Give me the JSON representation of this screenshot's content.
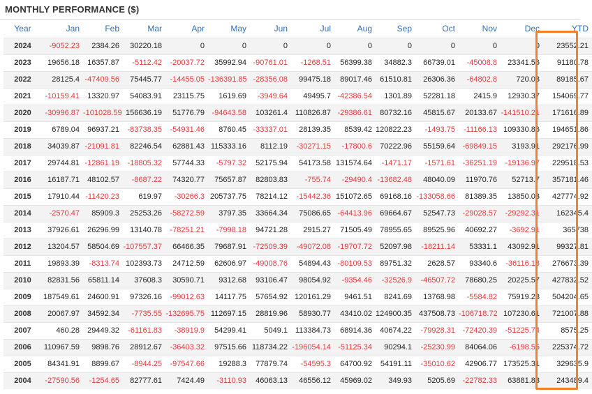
{
  "title": "MONTHLY PERFORMANCE ($)",
  "colors": {
    "header_text": "#2f6fb3",
    "negative": "#e23b3b",
    "highlight": "#f0822d"
  },
  "headers": [
    "Year",
    "Jan",
    "Feb",
    "Mar",
    "Apr",
    "May",
    "Jun",
    "Jul",
    "Aug",
    "Sep",
    "Oct",
    "Nov",
    "Dec",
    "YTD"
  ],
  "rows": [
    [
      "2024",
      "-9052.23",
      "2384.26",
      "30220.18",
      "0",
      "0",
      "0",
      "0",
      "0",
      "0",
      "0",
      "0",
      "0",
      "23552.21"
    ],
    [
      "2023",
      "19656.18",
      "16357.87",
      "-5112.42",
      "-20037.72",
      "35992.94",
      "-90761.01",
      "-1268.51",
      "56399.38",
      "34882.3",
      "66739.01",
      "-45008.8",
      "23341.56",
      "91180.78"
    ],
    [
      "2022",
      "28125.4",
      "-47409.56",
      "75445.77",
      "-14455.05",
      "-136391.85",
      "-28356.08",
      "99475.18",
      "89017.46",
      "61510.81",
      "26306.36",
      "-64802.8",
      "720.03",
      "89185.67"
    ],
    [
      "2021",
      "-10159.41",
      "13320.97",
      "54083.91",
      "23115.75",
      "1619.69",
      "-3949.64",
      "49495.7",
      "-42386.54",
      "1301.89",
      "52281.18",
      "2415.9",
      "12930.37",
      "154069.77"
    ],
    [
      "2020",
      "-30996.87",
      "-101028.59",
      "156636.19",
      "51776.79",
      "-94643.58",
      "103261.4",
      "110826.87",
      "-29386.61",
      "80732.16",
      "45815.67",
      "20133.67",
      "-141510.21",
      "171616.89"
    ],
    [
      "2019",
      "6789.04",
      "96937.21",
      "-83738.35",
      "-54931.46",
      "8760.45",
      "-33337.01",
      "28139.35",
      "8539.42",
      "120822.23",
      "-1493.75",
      "-11166.13",
      "109330.86",
      "194651.86"
    ],
    [
      "2018",
      "34039.87",
      "-21091.81",
      "82246.54",
      "62881.43",
      "115333.16",
      "8112.19",
      "-30271.15",
      "-17800.6",
      "70222.96",
      "55159.64",
      "-69849.15",
      "3193.91",
      "292176.99"
    ],
    [
      "2017",
      "29744.81",
      "-12861.19",
      "-18805.32",
      "57744.33",
      "-5797.32",
      "52175.94",
      "54173.58",
      "131574.64",
      "-1471.17",
      "-1571.61",
      "-36251.19",
      "-19136.97",
      "229518.53"
    ],
    [
      "2016",
      "16187.71",
      "48102.57",
      "-8687.22",
      "74320.77",
      "75657.87",
      "82803.83",
      "-755.74",
      "-29490.4",
      "-13682.48",
      "48040.09",
      "11970.76",
      "52713.7",
      "357181.46"
    ],
    [
      "2015",
      "17910.44",
      "-11420.23",
      "619.97",
      "-30266.3",
      "205737.75",
      "78214.12",
      "-15442.36",
      "151072.65",
      "69168.16",
      "-133058.66",
      "81389.35",
      "13850.03",
      "427774.92"
    ],
    [
      "2014",
      "-2570.47",
      "85909.3",
      "25253.26",
      "-58272.59",
      "3797.35",
      "33664.34",
      "75086.65",
      "-64413.96",
      "69664.67",
      "52547.73",
      "-29028.57",
      "-29292.31",
      "162345.4"
    ],
    [
      "2013",
      "37926.61",
      "26296.99",
      "13140.78",
      "-78251.21",
      "-7998.18",
      "94721.28",
      "2915.27",
      "71505.49",
      "78955.65",
      "89525.96",
      "40692.27",
      "-3692.91",
      "365738"
    ],
    [
      "2012",
      "13204.57",
      "58504.69",
      "-107557.37",
      "66466.35",
      "79687.91",
      "-72509.39",
      "-49072.08",
      "-19707.72",
      "52097.98",
      "-18211.14",
      "53331.1",
      "43092.91",
      "99327.81"
    ],
    [
      "2011",
      "19893.39",
      "-8313.74",
      "102393.73",
      "24712.59",
      "62606.97",
      "-49008.76",
      "54894.43",
      "-80109.53",
      "89751.32",
      "2628.57",
      "93340.6",
      "-36116.18",
      "276673.39"
    ],
    [
      "2010",
      "82831.56",
      "65811.14",
      "37608.3",
      "30590.71",
      "9312.68",
      "93106.47",
      "98054.92",
      "-9354.46",
      "-32526.9",
      "-46507.72",
      "78680.25",
      "20225.57",
      "427832.52"
    ],
    [
      "2009",
      "187549.61",
      "24600.91",
      "97326.16",
      "-99012.63",
      "14117.75",
      "57654.92",
      "120161.29",
      "9461.51",
      "8241.69",
      "13768.98",
      "-5584.82",
      "75919.28",
      "504204.65"
    ],
    [
      "2008",
      "20067.97",
      "34592.34",
      "-7735.55",
      "-132695.75",
      "112697.15",
      "28819.96",
      "58930.77",
      "43410.02",
      "124900.35",
      "437508.73",
      "-106718.72",
      "107230.61",
      "721007.88"
    ],
    [
      "2007",
      "460.28",
      "29449.32",
      "-61161.83",
      "-38919.9",
      "54299.41",
      "5049.1",
      "113384.73",
      "68914.36",
      "40674.22",
      "-79928.31",
      "-72420.39",
      "-51225.74",
      "8575.25"
    ],
    [
      "2006",
      "110967.59",
      "9898.76",
      "28912.67",
      "-36403.32",
      "97515.66",
      "118734.22",
      "-196054.14",
      "-51125.34",
      "90294.1",
      "-25230.99",
      "84064.06",
      "-6198.55",
      "225374.72"
    ],
    [
      "2005",
      "84341.91",
      "8899.67",
      "-8944.25",
      "-97547.66",
      "19288.3",
      "77879.74",
      "-54595.3",
      "64700.92",
      "54191.11",
      "-35010.62",
      "42906.77",
      "173525.31",
      "329635.9"
    ],
    [
      "2004",
      "-27590.56",
      "-1254.65",
      "82777.61",
      "7424.49",
      "-3110.93",
      "46063.13",
      "46556.12",
      "45969.02",
      "349.93",
      "5205.69",
      "-22782.33",
      "63881.88",
      "243489.4"
    ]
  ]
}
